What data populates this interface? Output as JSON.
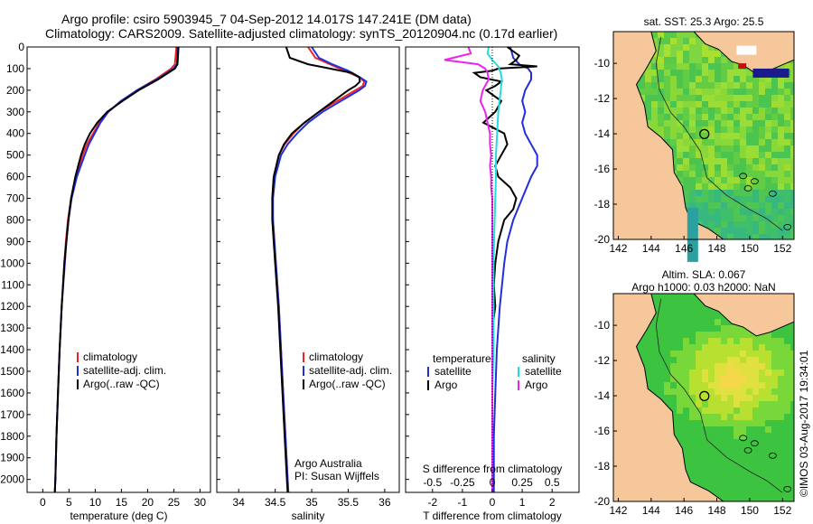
{
  "header": {
    "line1": "Argo profile: csiro 5903945_7 04-Sep-2012 14.017S 147.241E (DM data)",
    "line2": "Climatology: CARS2009. Satellite-adjusted climatology: synTS_20120904.nc (0.17d earlier)"
  },
  "colors": {
    "climatology": "#ee2222",
    "satellite": "#1f2fdd",
    "argo": "#000000",
    "sat_salinity": "#22dddd",
    "argo_salinity": "#ee22ee"
  },
  "chart_data": [
    {
      "type": "line",
      "name": "temperature",
      "xlabel": "temperature (deg C)",
      "xlim": [
        -3,
        32
      ],
      "ylim": [
        2060,
        0
      ],
      "xticks": [
        "0",
        "5",
        "10",
        "15",
        "20",
        "25",
        "30"
      ],
      "yticks": [
        "0",
        "100",
        "200",
        "300",
        "400",
        "500",
        "600",
        "700",
        "800",
        "900",
        "1000",
        "1100",
        "1200",
        "1300",
        "1400",
        "1500",
        "1600",
        "1700",
        "1800",
        "1900",
        "2000"
      ],
      "legend": [
        "climatology",
        "satellite-adj. clim.",
        "Argo(..raw -QC)"
      ],
      "series": [
        {
          "name": "climatology",
          "y": [
            0,
            80,
            100,
            150,
            200,
            250,
            300,
            350,
            400,
            450,
            500,
            600,
            700,
            800,
            900,
            1000,
            1200,
            1400,
            1600,
            1800,
            2000,
            2060
          ],
          "values": [
            25.5,
            25.2,
            24.5,
            21.5,
            18.0,
            15.0,
            12.5,
            10.8,
            9.6,
            8.4,
            7.6,
            6.3,
            5.4,
            4.8,
            4.4,
            4.1,
            3.6,
            3.2,
            2.9,
            2.6,
            2.4,
            2.3
          ]
        },
        {
          "name": "satellite",
          "y": [
            0,
            80,
            100,
            150,
            200,
            250,
            300,
            350,
            400,
            450,
            500,
            600,
            700,
            800,
            900,
            1000,
            1200,
            1400,
            1600,
            1800,
            2000,
            2060
          ],
          "values": [
            25.7,
            25.6,
            25.0,
            21.8,
            18.0,
            14.9,
            12.5,
            11.0,
            9.9,
            8.8,
            8.0,
            6.5,
            5.5,
            4.9,
            4.5,
            4.2,
            3.6,
            3.2,
            2.9,
            2.6,
            2.4,
            2.3
          ]
        },
        {
          "name": "argo",
          "y": [
            0,
            80,
            100,
            150,
            200,
            250,
            300,
            350,
            400,
            450,
            500,
            600,
            700,
            800,
            900,
            1000,
            1200,
            1400,
            1600,
            1800,
            2000,
            2060
          ],
          "values": [
            25.9,
            25.7,
            25.2,
            22.0,
            18.3,
            15.2,
            12.3,
            10.4,
            9.0,
            8.0,
            7.3,
            6.2,
            5.4,
            4.9,
            4.5,
            4.1,
            3.6,
            3.2,
            2.9,
            2.6,
            2.4,
            2.3
          ]
        }
      ]
    },
    {
      "type": "line",
      "name": "salinity",
      "xlabel": "salinity",
      "xlim": [
        33.7,
        36.2
      ],
      "ylim": [
        2060,
        0
      ],
      "xticks": [
        "34",
        "34.5",
        "35",
        "35.5",
        "36"
      ],
      "legend": [
        "climatology",
        "satellite-adj. clim.",
        "Argo(..raw -QC)"
      ],
      "annotation": [
        "Argo Australia",
        "PI: Susan Wijffels"
      ],
      "series": [
        {
          "name": "climatology",
          "y": [
            0,
            50,
            80,
            110,
            140,
            160,
            180,
            200,
            250,
            300,
            350,
            400,
            450,
            500,
            600,
            700,
            800,
            900,
            1000,
            1200,
            1400,
            1600,
            1800,
            2000,
            2060
          ],
          "values": [
            34.95,
            35.05,
            35.25,
            35.45,
            35.65,
            35.72,
            35.7,
            35.6,
            35.35,
            35.1,
            34.9,
            34.75,
            34.63,
            34.55,
            34.48,
            34.46,
            34.47,
            34.49,
            34.51,
            34.55,
            34.58,
            34.61,
            34.64,
            34.67,
            34.68
          ]
        },
        {
          "name": "satellite",
          "y": [
            0,
            50,
            80,
            110,
            140,
            160,
            180,
            200,
            250,
            300,
            350,
            400,
            450,
            500,
            600,
            700,
            800,
            900,
            1000,
            1200,
            1400,
            1600,
            1800,
            2000,
            2060
          ],
          "values": [
            35.0,
            35.1,
            35.28,
            35.5,
            35.66,
            35.75,
            35.73,
            35.65,
            35.4,
            35.15,
            34.95,
            34.8,
            34.67,
            34.58,
            34.5,
            34.47,
            34.47,
            34.49,
            34.51,
            34.55,
            34.58,
            34.61,
            34.64,
            34.67,
            34.68
          ]
        },
        {
          "name": "argo",
          "y": [
            0,
            50,
            80,
            100,
            120,
            140,
            160,
            180,
            200,
            250,
            300,
            350,
            400,
            450,
            500,
            600,
            700,
            800,
            900,
            1000,
            1200,
            1400,
            1600,
            1800,
            2000,
            2060
          ],
          "values": [
            34.65,
            34.7,
            34.95,
            35.25,
            35.55,
            35.65,
            35.66,
            35.6,
            35.5,
            35.3,
            35.1,
            34.9,
            34.73,
            34.62,
            34.55,
            34.48,
            34.46,
            34.46,
            34.48,
            34.5,
            34.54,
            34.57,
            34.6,
            34.63,
            34.66,
            34.67
          ]
        }
      ]
    },
    {
      "type": "line",
      "name": "difference",
      "xlabel": "T difference from climatology",
      "x2label": "S difference from climatology",
      "xlim": [
        -2.9,
        2.9
      ],
      "ylim": [
        2060,
        0
      ],
      "xticks": [
        "-2",
        "-1",
        "0",
        "1",
        "2"
      ],
      "x2ticks": [
        "-0.5",
        "-0.25",
        "0",
        "0.25",
        "0.5"
      ],
      "legend_groups": [
        {
          "title": "temperature",
          "items": [
            "satellite",
            "Argo"
          ]
        },
        {
          "title": "salinity",
          "items": [
            "satellite",
            "Argo"
          ]
        }
      ],
      "series": [
        {
          "name": "T satellite",
          "y": [
            0,
            50,
            80,
            100,
            120,
            150,
            200,
            250,
            300,
            350,
            400,
            450,
            500,
            550,
            600,
            700,
            800,
            900,
            1000,
            1200,
            1400,
            1600,
            1800,
            2000,
            2060
          ],
          "values": [
            0.6,
            0.7,
            0.9,
            1.2,
            1.3,
            1.3,
            1.1,
            1.0,
            1.1,
            1.0,
            1.1,
            1.3,
            1.5,
            1.5,
            1.3,
            1.0,
            0.7,
            0.5,
            0.4,
            0.25,
            0.15,
            0.1,
            0.05,
            0.05,
            0.05
          ]
        },
        {
          "name": "T argo",
          "y": [
            0,
            40,
            60,
            80,
            90,
            100,
            110,
            120,
            140,
            160,
            180,
            200,
            250,
            300,
            350,
            400,
            450,
            500,
            550,
            600,
            650,
            700,
            750,
            800,
            850,
            900,
            1000,
            1100,
            1200,
            1300,
            1400,
            1500,
            1600,
            1800,
            2000,
            2060
          ],
          "values": [
            0.5,
            0.9,
            0.8,
            0.6,
            1.5,
            0.2,
            0.0,
            -0.6,
            -0.4,
            0.3,
            0.1,
            -0.2,
            0.3,
            0.1,
            -0.3,
            0.4,
            0.5,
            0.3,
            0.1,
            0.2,
            0.6,
            0.8,
            0.7,
            0.4,
            0.3,
            0.2,
            0.1,
            0.05,
            0.1,
            0.0,
            0.0,
            0.0,
            0.0,
            0.0,
            0.0,
            0.0
          ]
        },
        {
          "name": "S satellite",
          "y": [
            0,
            30,
            60,
            90,
            120,
            150,
            200,
            300,
            400,
            500,
            600,
            800,
            1000,
            1200,
            1400,
            1600,
            1800,
            2000,
            2060
          ],
          "values": [
            -0.03,
            -0.04,
            0.0,
            0.05,
            0.07,
            0.08,
            0.07,
            0.05,
            0.04,
            0.03,
            0.03,
            0.02,
            0.01,
            0.01,
            0.01,
            0.0,
            0.0,
            0.0,
            0.0
          ]
        },
        {
          "name": "S argo",
          "y": [
            0,
            30,
            60,
            80,
            100,
            120,
            150,
            200,
            250,
            300,
            350,
            400,
            450,
            500,
            550,
            600,
            650,
            700,
            800,
            900,
            1000,
            1200,
            1400,
            1600,
            1800,
            2000,
            2060
          ],
          "values": [
            -0.2,
            -0.18,
            -0.4,
            -0.12,
            -0.06,
            -0.04,
            -0.03,
            -0.08,
            -0.1,
            -0.06,
            -0.04,
            -0.02,
            -0.02,
            -0.01,
            -0.02,
            -0.01,
            -0.01,
            0.0,
            0.0,
            0.0,
            0.0,
            0.0,
            0.0,
            0.0,
            0.0,
            0.0,
            0.0
          ]
        }
      ]
    },
    {
      "type": "heatmap",
      "name": "sst_map",
      "title": "sat. SST: 25.3 Argo: 25.5",
      "xticks": [
        "142",
        "144",
        "146",
        "148",
        "150",
        "152"
      ],
      "yticks": [
        "-10",
        "-12",
        "-14",
        "-16",
        "-18",
        "-20"
      ],
      "xlim": [
        141.7,
        152.7
      ],
      "ylim": [
        -20,
        -8.2
      ],
      "argo_position": [
        147.241,
        -14.017
      ]
    },
    {
      "type": "heatmap",
      "name": "sla_map",
      "title": "Altim. SLA: 0.067",
      "subtitle": "Argo h1000: 0.03 h2000: NaN",
      "xticks": [
        "142",
        "144",
        "146",
        "148",
        "150",
        "152"
      ],
      "yticks": [
        "-10",
        "-12",
        "-14",
        "-16",
        "-18",
        "-20"
      ],
      "xlim": [
        141.7,
        152.7
      ],
      "ylim": [
        -20,
        -8.2
      ],
      "argo_position": [
        147.241,
        -14.017
      ]
    }
  ],
  "footer": {
    "stamp": "©IMOS 03-Aug-2017 19:34:01"
  }
}
